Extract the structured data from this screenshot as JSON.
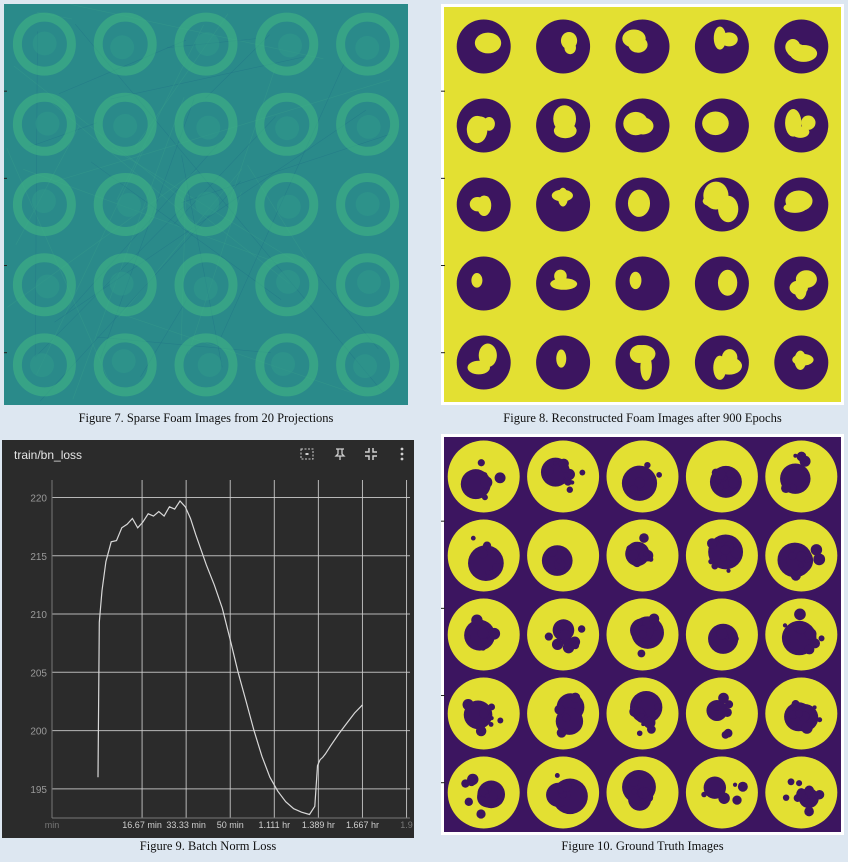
{
  "captions": {
    "fig7": "Figure 7. Sparse Foam Images from 20 Projections",
    "fig8": "Figure 8. Reconstructed Foam Images after 900 Epochs",
    "fig9": "Figure 9. Batch Norm Loss",
    "fig10": "Figure 10. Ground Truth Images"
  },
  "colors": {
    "page_bg": "#dde7f1",
    "viridis_teal": "#2a8a8a",
    "viridis_green": "#41b884",
    "viridis_yellow": "#e3e032",
    "viridis_purple": "#3c1560",
    "tb_bg": "#2b2b2b",
    "tb_line": "#d8d8d8"
  },
  "toolbar_icons": [
    "fit-domain-icon",
    "pin-icon",
    "collapse-icon",
    "more-vert-icon"
  ],
  "chart_data": {
    "type": "line",
    "title": "train/bn_loss",
    "xlabel": "",
    "ylabel": "",
    "x_tick_labels": [
      "min",
      "16.67 min",
      "33.33 min",
      "50 min",
      "1.111 hr",
      "1.389 hr",
      "1.667 hr",
      "1.9"
    ],
    "y_tick_labels": [
      "195",
      "200",
      "205",
      "210",
      "215",
      "220"
    ],
    "xlim_min": [
      0,
      118
    ],
    "ylim": [
      192.5,
      221.5
    ],
    "grid": true,
    "series": [
      {
        "x": [
          0,
          0.5,
          1.5,
          3,
          5,
          7,
          9,
          11,
          13,
          15,
          17,
          19,
          21,
          23,
          25,
          27,
          29,
          31,
          33,
          35,
          37,
          39,
          41,
          44,
          47,
          50,
          53,
          56,
          59,
          62,
          65,
          68,
          71,
          74,
          77,
          80,
          82,
          83,
          84,
          85,
          86,
          88,
          91,
          94,
          97,
          100
        ],
        "y": [
          196,
          209.3,
          212,
          214.5,
          216.2,
          216.3,
          217.4,
          217.7,
          218.2,
          217.4,
          217.9,
          218.6,
          218.4,
          218.8,
          218.4,
          219.2,
          219.0,
          219.7,
          219.2,
          218.2,
          216.8,
          215.5,
          214.2,
          212.5,
          210.5,
          207.8,
          205.0,
          202.5,
          200.0,
          197.8,
          196.0,
          194.8,
          193.9,
          193.3,
          193.0,
          192.8,
          193.5,
          197.0,
          197.5,
          197.7,
          198.0,
          198.7,
          199.7,
          200.6,
          201.5,
          202.2
        ]
      }
    ]
  }
}
